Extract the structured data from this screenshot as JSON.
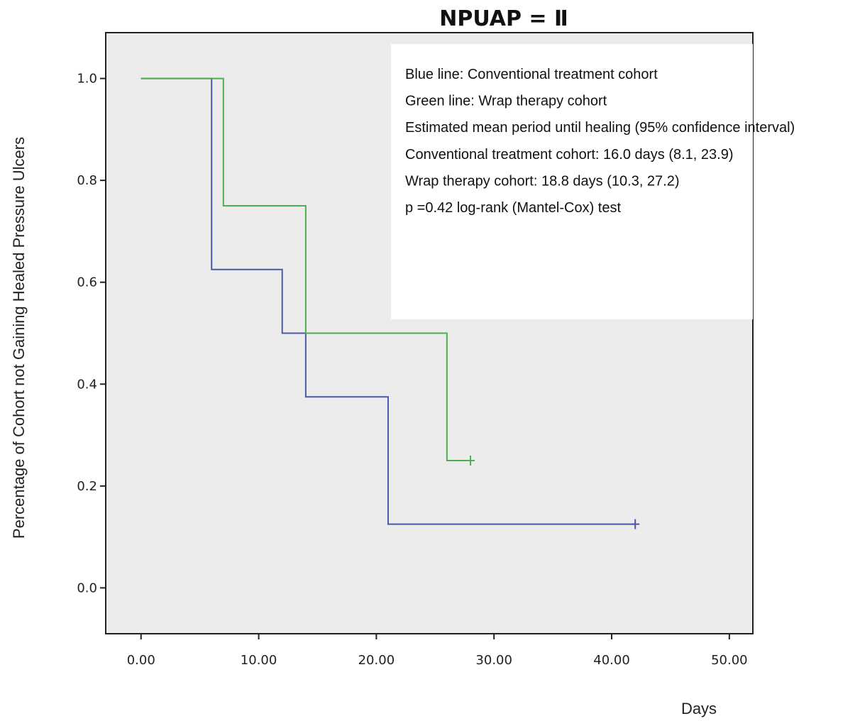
{
  "chart_data": {
    "type": "line",
    "title": "NPUAP = Ⅱ",
    "xlabel": "Days",
    "ylabel": "Percentage of Cohort not Gaining Healed Pressure Ulcers",
    "xlim": [
      -3,
      52
    ],
    "ylim": [
      -0.09,
      1.09
    ],
    "x_ticks": [
      0,
      10,
      20,
      30,
      40,
      50
    ],
    "x_tick_labels": [
      "0.00",
      "10.00",
      "20.00",
      "30.00",
      "40.00",
      "50.00"
    ],
    "y_ticks": [
      0.0,
      0.2,
      0.4,
      0.6,
      0.8,
      1.0
    ],
    "y_tick_labels": [
      "0.0",
      "0.2",
      "0.4",
      "0.6",
      "0.8",
      "1.0"
    ],
    "grid": false,
    "legend_lines": [
      "Blue line: Conventional treatment cohort",
      "Green line: Wrap therapy cohort",
      "Estimated mean period until healing (95% confidence interval)",
      "Conventional treatment cohort: 16.0 days (8.1, 23.9)",
      "Wrap therapy cohort: 18.8 days (10.3, 27.2)",
      "p =0.42 log-rank (Mantel-Cox) test"
    ],
    "legend_placement": "top-right",
    "series": [
      {
        "color": "#4a5aa8",
        "step": true,
        "x": [
          0,
          6,
          12,
          14,
          21,
          42
        ],
        "y": [
          1.0,
          0.625,
          0.5,
          0.375,
          0.125,
          0.125
        ],
        "censored": [
          [
            42,
            0.125
          ]
        ]
      },
      {
        "color": "#4caf50",
        "step": true,
        "x": [
          0,
          7,
          14,
          26,
          28
        ],
        "y": [
          1.0,
          0.75,
          0.5,
          0.25,
          0.25
        ],
        "censored": [
          [
            28,
            0.25
          ]
        ]
      }
    ],
    "plot_background": "#ececec"
  }
}
